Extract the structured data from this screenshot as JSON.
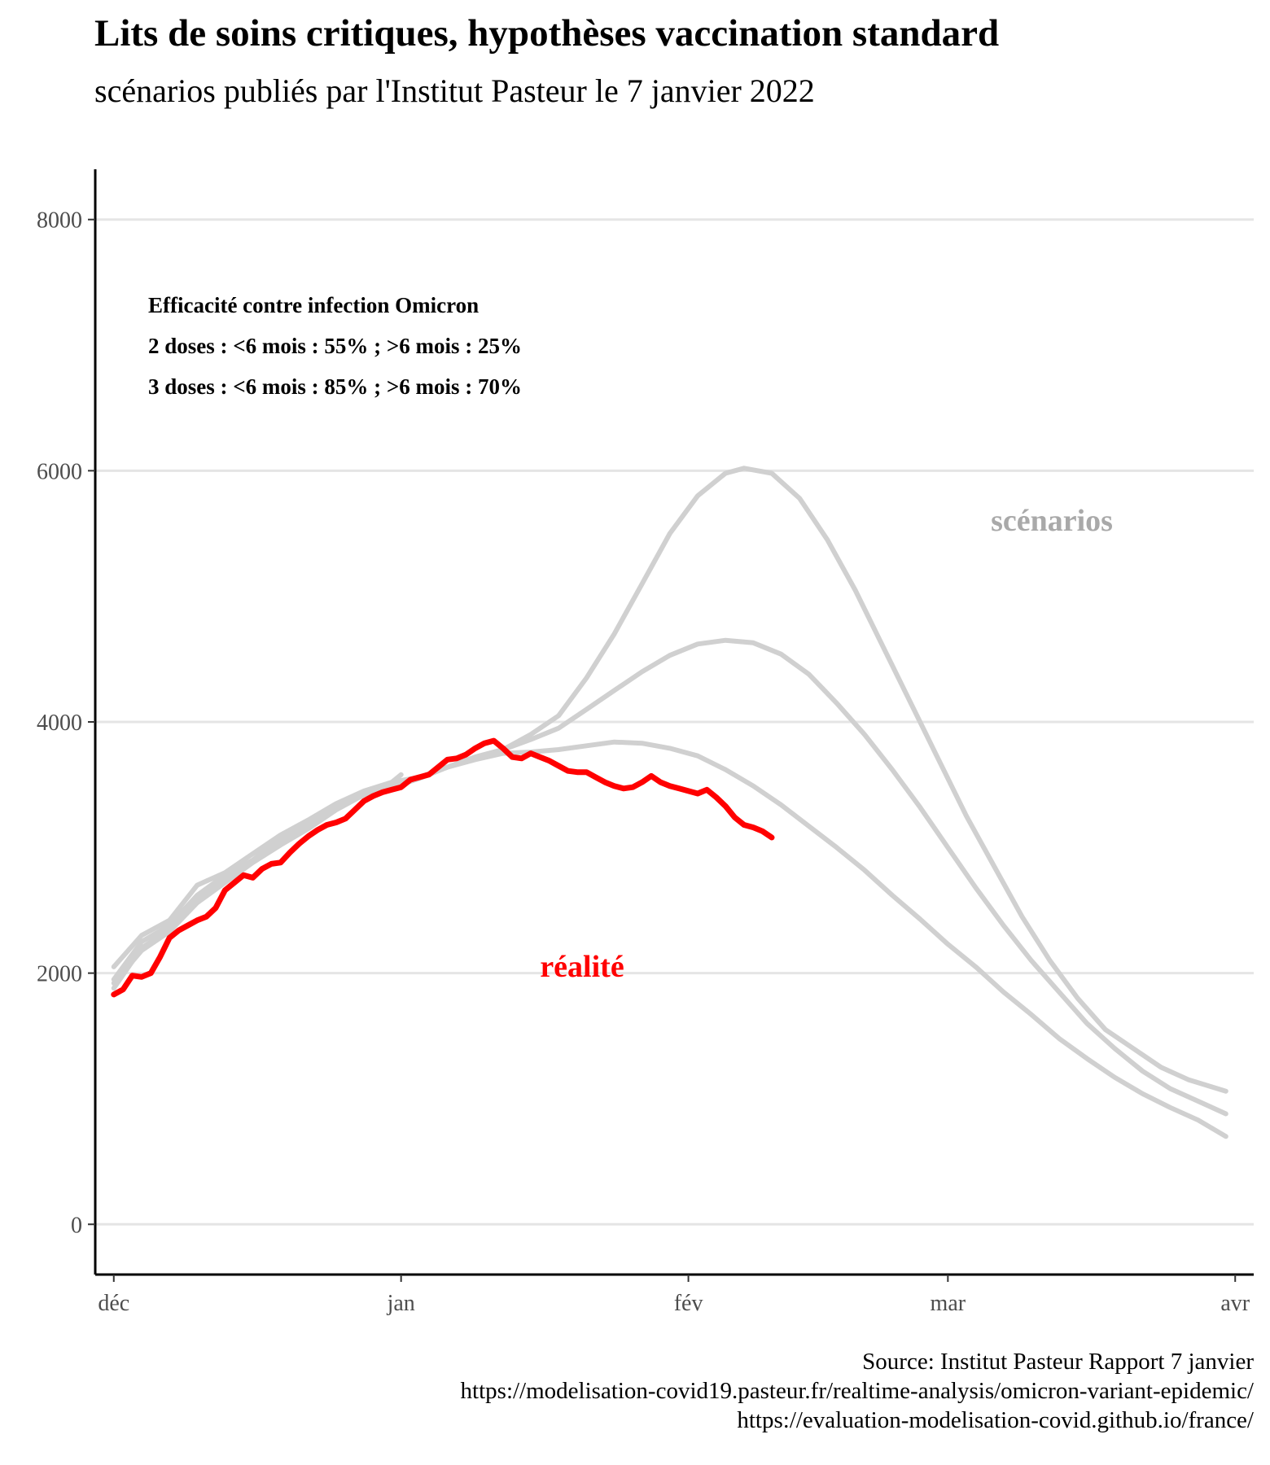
{
  "title": "Lits de soins critiques, hypothèses vaccination standard",
  "subtitle": "scénarios publiés par l'Institut Pasteur le 7 janvier 2022",
  "annotation": {
    "lines": [
      "Efficacité contre infection Omicron",
      "2 doses : <6 mois : 55% ; >6 mois : 25%",
      "3 doses : <6 mois : 85% ; >6 mois : 70%"
    ]
  },
  "labels": {
    "scenarios": "scénarios",
    "reality": "réalité"
  },
  "colors": {
    "scenario": "#d0d0d0",
    "reality": "#ff0000",
    "scenario_label": "#a9a9a9",
    "grid": "#e5e5e5"
  },
  "source": [
    "Source: Institut Pasteur Rapport 7 janvier",
    "https://modelisation-covid19.pasteur.fr/realtime-analysis/omicron-variant-epidemic/",
    "https://evaluation-modelisation-covid.github.io/france/"
  ],
  "chart_data": {
    "type": "line",
    "x_unit": "date",
    "xlim": [
      "2021-11-29",
      "2022-04-03"
    ],
    "ylim": [
      -400,
      8400
    ],
    "grid": "horizontal",
    "x_ticks": [
      {
        "date": "2021-12-01",
        "label": "déc"
      },
      {
        "date": "2022-01-01",
        "label": "jan"
      },
      {
        "date": "2022-02-01",
        "label": "fév"
      },
      {
        "date": "2022-03-01",
        "label": "mar"
      },
      {
        "date": "2022-04-01",
        "label": "avr"
      }
    ],
    "y_ticks": [
      0,
      2000,
      4000,
      6000,
      8000
    ],
    "series": [
      {
        "name": "",
        "role": "scenario",
        "points": [
          [
            "2021-12-01",
            1950
          ],
          [
            "2021-12-04",
            2250
          ],
          [
            "2021-12-07",
            2380
          ],
          [
            "2021-12-10",
            2620
          ],
          [
            "2021-12-13",
            2780
          ],
          [
            "2021-12-16",
            2900
          ],
          [
            "2021-12-19",
            3080
          ],
          [
            "2021-12-22",
            3180
          ],
          [
            "2021-12-25",
            3320
          ],
          [
            "2021-12-28",
            3420
          ],
          [
            "2021-12-31",
            3500
          ],
          [
            "2022-01-03",
            3560
          ],
          [
            "2022-01-06",
            3640
          ],
          [
            "2022-01-09",
            3720
          ],
          [
            "2022-01-12",
            3780
          ],
          [
            "2022-01-15",
            3900
          ],
          [
            "2022-01-18",
            4050
          ],
          [
            "2022-01-21",
            4350
          ],
          [
            "2022-01-24",
            4700
          ],
          [
            "2022-01-27",
            5100
          ],
          [
            "2022-01-30",
            5500
          ],
          [
            "2022-02-02",
            5800
          ],
          [
            "2022-02-05",
            5980
          ],
          [
            "2022-02-07",
            6020
          ],
          [
            "2022-02-10",
            5980
          ],
          [
            "2022-02-13",
            5780
          ],
          [
            "2022-02-16",
            5450
          ],
          [
            "2022-02-19",
            5050
          ],
          [
            "2022-02-22",
            4600
          ],
          [
            "2022-02-25",
            4150
          ],
          [
            "2022-02-28",
            3700
          ],
          [
            "2022-03-03",
            3250
          ],
          [
            "2022-03-06",
            2850
          ],
          [
            "2022-03-09",
            2450
          ],
          [
            "2022-03-12",
            2100
          ],
          [
            "2022-03-15",
            1800
          ],
          [
            "2022-03-18",
            1550
          ],
          [
            "2022-03-21",
            1400
          ],
          [
            "2022-03-24",
            1250
          ],
          [
            "2022-03-27",
            1150
          ],
          [
            "2022-03-31",
            1060
          ]
        ]
      },
      {
        "name": "",
        "role": "scenario",
        "points": [
          [
            "2021-12-01",
            2050
          ],
          [
            "2021-12-04",
            2300
          ],
          [
            "2021-12-07",
            2420
          ],
          [
            "2021-12-10",
            2700
          ],
          [
            "2021-12-13",
            2800
          ],
          [
            "2021-12-16",
            2950
          ],
          [
            "2021-12-19",
            3100
          ],
          [
            "2021-12-22",
            3220
          ],
          [
            "2021-12-25",
            3350
          ],
          [
            "2021-12-28",
            3450
          ],
          [
            "2021-12-31",
            3520
          ],
          [
            "2022-01-03",
            3560
          ],
          [
            "2022-01-06",
            3640
          ],
          [
            "2022-01-09",
            3720
          ],
          [
            "2022-01-12",
            3780
          ],
          [
            "2022-01-15",
            3860
          ],
          [
            "2022-01-18",
            3950
          ],
          [
            "2022-01-21",
            4100
          ],
          [
            "2022-01-24",
            4250
          ],
          [
            "2022-01-27",
            4400
          ],
          [
            "2022-01-30",
            4530
          ],
          [
            "2022-02-02",
            4620
          ],
          [
            "2022-02-05",
            4650
          ],
          [
            "2022-02-08",
            4630
          ],
          [
            "2022-02-11",
            4540
          ],
          [
            "2022-02-14",
            4380
          ],
          [
            "2022-02-17",
            4150
          ],
          [
            "2022-02-20",
            3900
          ],
          [
            "2022-02-23",
            3620
          ],
          [
            "2022-02-26",
            3320
          ],
          [
            "2022-03-01",
            3000
          ],
          [
            "2022-03-04",
            2680
          ],
          [
            "2022-03-07",
            2380
          ],
          [
            "2022-03-10",
            2100
          ],
          [
            "2022-03-13",
            1850
          ],
          [
            "2022-03-16",
            1600
          ],
          [
            "2022-03-19",
            1400
          ],
          [
            "2022-03-22",
            1220
          ],
          [
            "2022-03-25",
            1080
          ],
          [
            "2022-03-28",
            980
          ],
          [
            "2022-03-31",
            880
          ]
        ]
      },
      {
        "name": "",
        "role": "scenario",
        "points": [
          [
            "2021-12-01",
            1880
          ],
          [
            "2021-12-04",
            2200
          ],
          [
            "2021-12-07",
            2350
          ],
          [
            "2021-12-10",
            2600
          ],
          [
            "2021-12-13",
            2750
          ],
          [
            "2021-12-16",
            2900
          ],
          [
            "2021-12-19",
            3050
          ],
          [
            "2021-12-22",
            3200
          ],
          [
            "2021-12-25",
            3330
          ],
          [
            "2021-12-28",
            3420
          ],
          [
            "2021-12-31",
            3480
          ],
          [
            "2022-01-03",
            3550
          ],
          [
            "2022-01-06",
            3640
          ],
          [
            "2022-01-09",
            3700
          ],
          [
            "2022-01-12",
            3750
          ],
          [
            "2022-01-15",
            3760
          ],
          [
            "2022-01-18",
            3780
          ],
          [
            "2022-01-21",
            3810
          ],
          [
            "2022-01-24",
            3840
          ],
          [
            "2022-01-27",
            3830
          ],
          [
            "2022-01-30",
            3790
          ],
          [
            "2022-02-02",
            3730
          ],
          [
            "2022-02-05",
            3620
          ],
          [
            "2022-02-08",
            3490
          ],
          [
            "2022-02-11",
            3340
          ],
          [
            "2022-02-14",
            3170
          ],
          [
            "2022-02-17",
            3000
          ],
          [
            "2022-02-20",
            2820
          ],
          [
            "2022-02-23",
            2620
          ],
          [
            "2022-02-26",
            2430
          ],
          [
            "2022-03-01",
            2230
          ],
          [
            "2022-03-04",
            2050
          ],
          [
            "2022-03-07",
            1850
          ],
          [
            "2022-03-10",
            1670
          ],
          [
            "2022-03-13",
            1480
          ],
          [
            "2022-03-16",
            1320
          ],
          [
            "2022-03-19",
            1170
          ],
          [
            "2022-03-22",
            1040
          ],
          [
            "2022-03-25",
            930
          ],
          [
            "2022-03-28",
            830
          ],
          [
            "2022-03-31",
            700
          ]
        ]
      },
      {
        "name": "",
        "role": "scenario",
        "points": [
          [
            "2021-12-01",
            1920
          ],
          [
            "2021-12-04",
            2180
          ],
          [
            "2021-12-07",
            2330
          ],
          [
            "2021-12-10",
            2560
          ],
          [
            "2021-12-13",
            2720
          ],
          [
            "2021-12-16",
            2880
          ],
          [
            "2021-12-19",
            3020
          ],
          [
            "2021-12-22",
            3150
          ],
          [
            "2021-12-25",
            3300
          ],
          [
            "2021-12-28",
            3420
          ],
          [
            "2021-12-31",
            3520
          ],
          [
            "2022-01-01",
            3580
          ]
        ]
      },
      {
        "name": "",
        "role": "reality",
        "points": [
          [
            "2021-12-01",
            1830
          ],
          [
            "2021-12-02",
            1870
          ],
          [
            "2021-12-03",
            1980
          ],
          [
            "2021-12-04",
            1970
          ],
          [
            "2021-12-05",
            2000
          ],
          [
            "2021-12-06",
            2130
          ],
          [
            "2021-12-07",
            2280
          ],
          [
            "2021-12-08",
            2340
          ],
          [
            "2021-12-09",
            2380
          ],
          [
            "2021-12-10",
            2420
          ],
          [
            "2021-12-11",
            2450
          ],
          [
            "2021-12-12",
            2520
          ],
          [
            "2021-12-13",
            2660
          ],
          [
            "2021-12-14",
            2720
          ],
          [
            "2021-12-15",
            2780
          ],
          [
            "2021-12-16",
            2760
          ],
          [
            "2021-12-17",
            2830
          ],
          [
            "2021-12-18",
            2870
          ],
          [
            "2021-12-19",
            2880
          ],
          [
            "2021-12-20",
            2960
          ],
          [
            "2021-12-21",
            3030
          ],
          [
            "2021-12-22",
            3090
          ],
          [
            "2021-12-23",
            3140
          ],
          [
            "2021-12-24",
            3180
          ],
          [
            "2021-12-25",
            3200
          ],
          [
            "2021-12-26",
            3230
          ],
          [
            "2021-12-27",
            3300
          ],
          [
            "2021-12-28",
            3370
          ],
          [
            "2021-12-29",
            3410
          ],
          [
            "2021-12-30",
            3440
          ],
          [
            "2021-12-31",
            3460
          ],
          [
            "2022-01-01",
            3480
          ],
          [
            "2022-01-02",
            3540
          ],
          [
            "2022-01-03",
            3560
          ],
          [
            "2022-01-04",
            3580
          ],
          [
            "2022-01-05",
            3640
          ],
          [
            "2022-01-06",
            3700
          ],
          [
            "2022-01-07",
            3710
          ],
          [
            "2022-01-08",
            3740
          ],
          [
            "2022-01-09",
            3790
          ],
          [
            "2022-01-10",
            3830
          ],
          [
            "2022-01-11",
            3850
          ],
          [
            "2022-01-12",
            3790
          ],
          [
            "2022-01-13",
            3720
          ],
          [
            "2022-01-14",
            3710
          ],
          [
            "2022-01-15",
            3750
          ],
          [
            "2022-01-16",
            3720
          ],
          [
            "2022-01-17",
            3690
          ],
          [
            "2022-01-18",
            3650
          ],
          [
            "2022-01-19",
            3610
          ],
          [
            "2022-01-20",
            3600
          ],
          [
            "2022-01-21",
            3600
          ],
          [
            "2022-01-22",
            3560
          ],
          [
            "2022-01-23",
            3520
          ],
          [
            "2022-01-24",
            3490
          ],
          [
            "2022-01-25",
            3470
          ],
          [
            "2022-01-26",
            3480
          ],
          [
            "2022-01-27",
            3520
          ],
          [
            "2022-01-28",
            3570
          ],
          [
            "2022-01-29",
            3520
          ],
          [
            "2022-01-30",
            3490
          ],
          [
            "2022-01-31",
            3470
          ],
          [
            "2022-02-01",
            3450
          ],
          [
            "2022-02-02",
            3430
          ],
          [
            "2022-02-03",
            3460
          ],
          [
            "2022-02-04",
            3400
          ],
          [
            "2022-02-05",
            3330
          ],
          [
            "2022-02-06",
            3240
          ],
          [
            "2022-02-07",
            3180
          ],
          [
            "2022-02-08",
            3160
          ],
          [
            "2022-02-09",
            3130
          ],
          [
            "2022-02-10",
            3080
          ]
        ]
      }
    ]
  }
}
